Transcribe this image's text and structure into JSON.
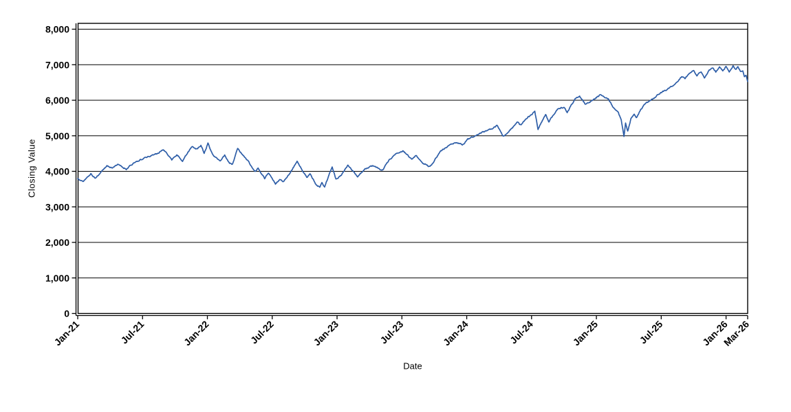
{
  "page": {
    "background": "#ffffff"
  },
  "chart": {
    "xlabel": "Date",
    "ylabel": "Closing Value",
    "line_color": "#2d5da7",
    "grid_color": "#000000",
    "frame_color": "#000000",
    "tick_color": "#000000"
  },
  "chart_data": {
    "type": "line",
    "title": "",
    "xlabel": "Date",
    "ylabel": "Closing Value",
    "x_unit": "months since Jan-2021",
    "xlim_months": [
      0,
      62
    ],
    "ylim": [
      0,
      8200
    ],
    "grid": true,
    "legend_position": "none",
    "y_ticks": {
      "values": [
        0,
        1000,
        2000,
        3000,
        4000,
        5000,
        6000,
        7000,
        8000
      ],
      "labels": [
        "0",
        "1,000",
        "2,000",
        "3,000",
        "4,000",
        "5,000",
        "6,000",
        "7,000",
        "8,000"
      ]
    },
    "x_ticks": {
      "month_offsets": [
        0,
        6,
        12,
        18,
        24,
        30,
        36,
        42,
        48,
        54,
        60,
        62
      ],
      "labels": [
        "Jan-21",
        "Jul-21",
        "Jan-22",
        "Jul-22",
        "Jan-23",
        "Jul-23",
        "Jan-24",
        "Jul-24",
        "Jan-25",
        "Jul-25",
        "Jan-26",
        "Mar-26"
      ]
    },
    "series": [
      {
        "name": "Closing Value",
        "color": "#2d5da7",
        "anchors_month_value": [
          [
            0,
            3790
          ],
          [
            0.5,
            3715
          ],
          [
            1.2,
            3930
          ],
          [
            1.6,
            3810
          ],
          [
            2.1,
            3950
          ],
          [
            2.7,
            4150
          ],
          [
            3.2,
            4100
          ],
          [
            3.7,
            4180
          ],
          [
            4.1,
            4125
          ],
          [
            4.5,
            4060
          ],
          [
            4.9,
            4180
          ],
          [
            5.5,
            4280
          ],
          [
            6.2,
            4380
          ],
          [
            6.8,
            4440
          ],
          [
            7.5,
            4510
          ],
          [
            7.9,
            4630
          ],
          [
            8.3,
            4480
          ],
          [
            8.7,
            4310
          ],
          [
            9.2,
            4470
          ],
          [
            9.7,
            4290
          ],
          [
            10.2,
            4540
          ],
          [
            10.6,
            4700
          ],
          [
            11.0,
            4620
          ],
          [
            11.4,
            4730
          ],
          [
            11.7,
            4510
          ],
          [
            12.05,
            4790
          ],
          [
            12.5,
            4460
          ],
          [
            13.2,
            4280
          ],
          [
            13.6,
            4470
          ],
          [
            14.0,
            4245
          ],
          [
            14.3,
            4185
          ],
          [
            14.8,
            4630
          ],
          [
            15.3,
            4450
          ],
          [
            15.7,
            4315
          ],
          [
            16.4,
            3990
          ],
          [
            16.7,
            4090
          ],
          [
            17.3,
            3800
          ],
          [
            17.65,
            3960
          ],
          [
            18.3,
            3645
          ],
          [
            18.7,
            3770
          ],
          [
            19.0,
            3710
          ],
          [
            19.6,
            3930
          ],
          [
            20.3,
            4280
          ],
          [
            21.2,
            3830
          ],
          [
            21.5,
            3930
          ],
          [
            22.1,
            3604
          ],
          [
            22.4,
            3560
          ],
          [
            22.6,
            3680
          ],
          [
            22.85,
            3560
          ],
          [
            23.3,
            3950
          ],
          [
            23.55,
            4100
          ],
          [
            23.9,
            3770
          ],
          [
            24.4,
            3900
          ],
          [
            25.0,
            4180
          ],
          [
            25.9,
            3840
          ],
          [
            26.6,
            4080
          ],
          [
            27.3,
            4150
          ],
          [
            28.2,
            4030
          ],
          [
            28.8,
            4320
          ],
          [
            29.4,
            4475
          ],
          [
            30.1,
            4570
          ],
          [
            30.9,
            4345
          ],
          [
            31.35,
            4440
          ],
          [
            32.0,
            4222
          ],
          [
            32.6,
            4125
          ],
          [
            33.6,
            4570
          ],
          [
            34.5,
            4765
          ],
          [
            35.2,
            4800
          ],
          [
            35.6,
            4740
          ],
          [
            36.1,
            4895
          ],
          [
            37.1,
            5060
          ],
          [
            38.0,
            5160
          ],
          [
            38.8,
            5285
          ],
          [
            39.4,
            4985
          ],
          [
            40.3,
            5250
          ],
          [
            40.7,
            5380
          ],
          [
            41.0,
            5300
          ],
          [
            41.5,
            5475
          ],
          [
            42.3,
            5680
          ],
          [
            42.6,
            5190
          ],
          [
            43.3,
            5605
          ],
          [
            43.6,
            5390
          ],
          [
            44.4,
            5765
          ],
          [
            45.0,
            5800
          ],
          [
            45.3,
            5670
          ],
          [
            46.0,
            6025
          ],
          [
            46.45,
            6110
          ],
          [
            46.95,
            5895
          ],
          [
            47.6,
            5990
          ],
          [
            48.35,
            6150
          ],
          [
            49.1,
            6050
          ],
          [
            49.5,
            5830
          ],
          [
            50.0,
            5670
          ],
          [
            50.3,
            5440
          ],
          [
            50.55,
            4980
          ],
          [
            50.7,
            5350
          ],
          [
            50.9,
            5120
          ],
          [
            51.2,
            5475
          ],
          [
            51.5,
            5605
          ],
          [
            51.7,
            5510
          ],
          [
            52.1,
            5735
          ],
          [
            52.5,
            5895
          ],
          [
            52.9,
            5990
          ],
          [
            53.3,
            6055
          ],
          [
            54.0,
            6220
          ],
          [
            54.6,
            6315
          ],
          [
            55.2,
            6445
          ],
          [
            55.9,
            6660
          ],
          [
            56.2,
            6600
          ],
          [
            56.5,
            6730
          ],
          [
            57.0,
            6840
          ],
          [
            57.3,
            6695
          ],
          [
            57.7,
            6795
          ],
          [
            58.0,
            6600
          ],
          [
            58.4,
            6825
          ],
          [
            58.75,
            6920
          ],
          [
            59.05,
            6795
          ],
          [
            59.4,
            6940
          ],
          [
            59.7,
            6825
          ],
          [
            60.0,
            6955
          ],
          [
            60.3,
            6812
          ],
          [
            60.65,
            6965
          ],
          [
            60.9,
            6858
          ],
          [
            61.1,
            6940
          ],
          [
            61.35,
            6795
          ],
          [
            61.55,
            6825
          ],
          [
            61.7,
            6665
          ],
          [
            61.85,
            6695
          ],
          [
            62,
            6540
          ]
        ]
      }
    ],
    "noise": {
      "step_months": 0.05,
      "amplitude": 14,
      "persistence": 0.6,
      "max_abs": 38,
      "seed": 1337
    }
  }
}
